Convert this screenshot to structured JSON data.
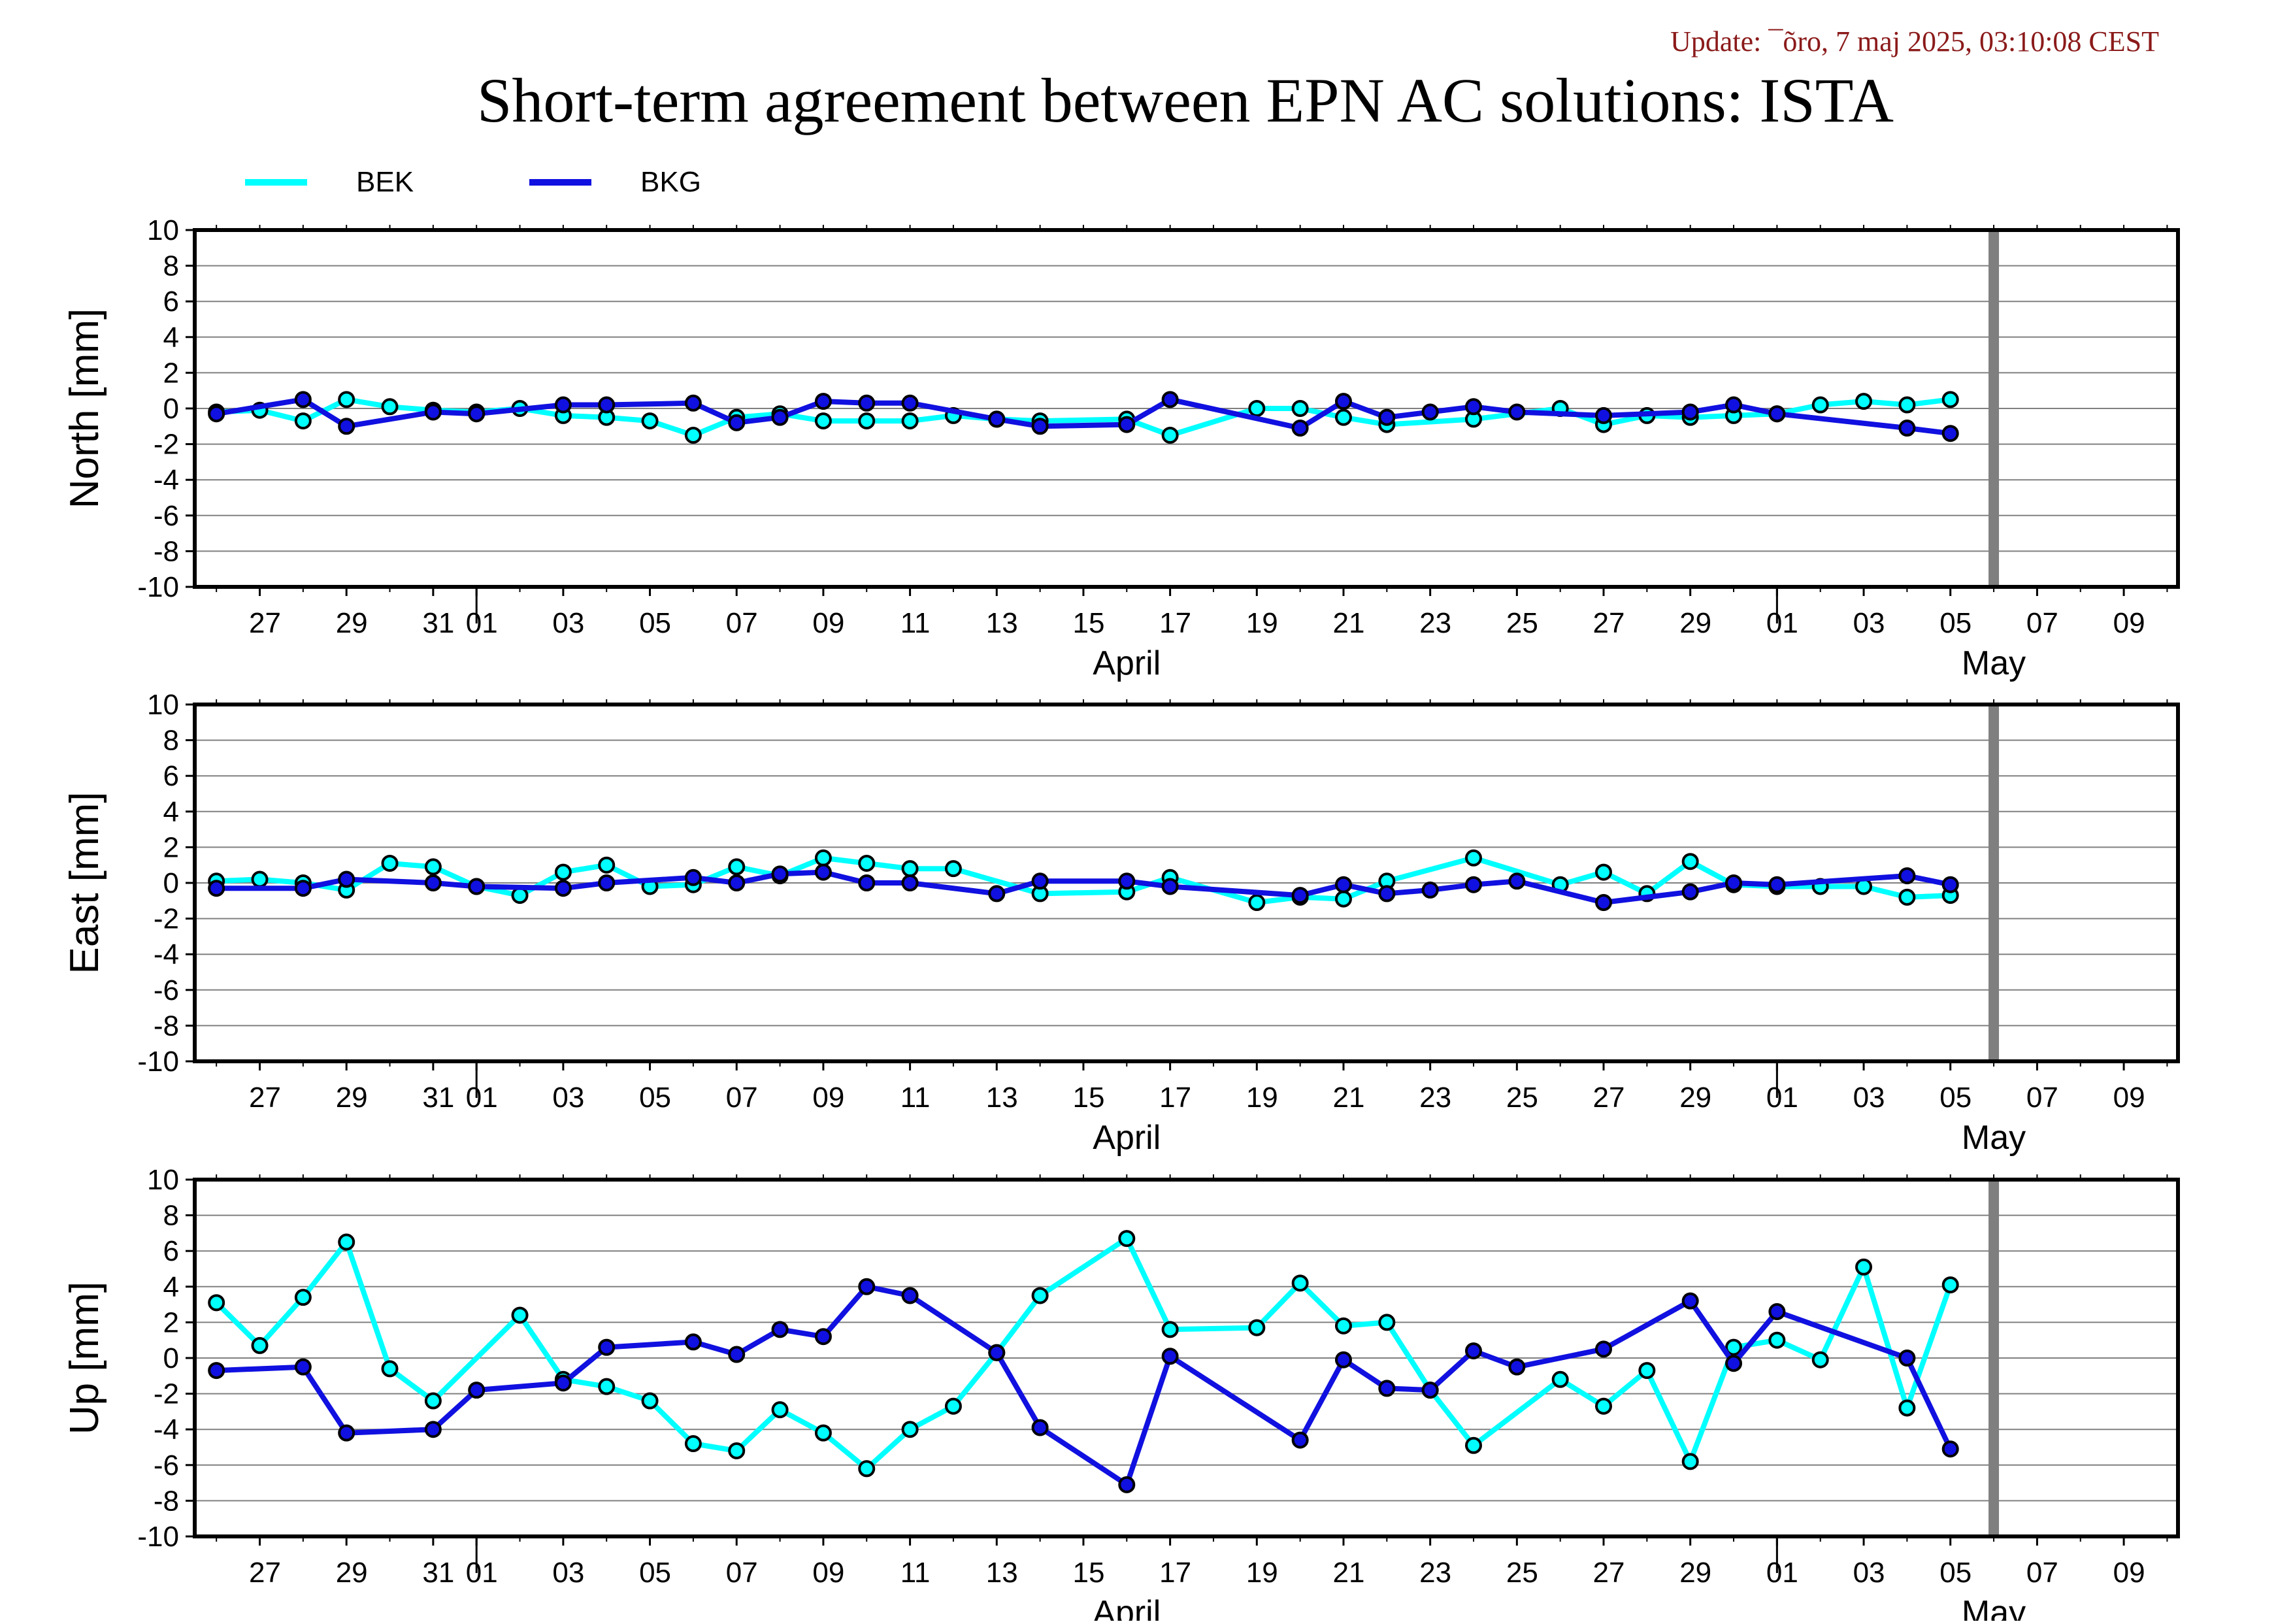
{
  "update_text": "Update: ¯õro, 7 maj 2025, 03:10:08 CEST",
  "title": "Short-term agreement between EPN AC solutions: ISTA",
  "colors": {
    "bek": "#00ffff",
    "bkg": "#1010e0",
    "update": "#8b1a1a",
    "marker_line": "#7f7f7f",
    "grid": "#808080",
    "axis": "#000000"
  },
  "legend": [
    {
      "name": "BEK",
      "color": "#00ffff"
    },
    {
      "name": "BKG",
      "color": "#1010e0"
    }
  ],
  "chart_data": [
    {
      "type": "line",
      "ylabel": "North [mm]",
      "ylim": [
        -10,
        10
      ],
      "yticks": [
        10,
        8,
        6,
        4,
        2,
        0,
        -2,
        -4,
        -6,
        -8,
        -10
      ],
      "xlim": [
        "2025-03-25T12:00",
        "2025-05-10T06:00"
      ],
      "xticks": [
        {
          "date": "2025-03-27",
          "label": "27"
        },
        {
          "date": "2025-03-29",
          "label": "29"
        },
        {
          "date": "2025-03-31",
          "label": "31"
        },
        {
          "date": "2025-04-01",
          "label": "01"
        },
        {
          "date": "2025-04-03",
          "label": "03"
        },
        {
          "date": "2025-04-05",
          "label": "05"
        },
        {
          "date": "2025-04-07",
          "label": "07"
        },
        {
          "date": "2025-04-09",
          "label": "09"
        },
        {
          "date": "2025-04-11",
          "label": "11"
        },
        {
          "date": "2025-04-13",
          "label": "13"
        },
        {
          "date": "2025-04-15",
          "label": "15"
        },
        {
          "date": "2025-04-17",
          "label": "17"
        },
        {
          "date": "2025-04-19",
          "label": "19"
        },
        {
          "date": "2025-04-21",
          "label": "21"
        },
        {
          "date": "2025-04-23",
          "label": "23"
        },
        {
          "date": "2025-04-25",
          "label": "25"
        },
        {
          "date": "2025-04-27",
          "label": "27"
        },
        {
          "date": "2025-04-29",
          "label": "29"
        },
        {
          "date": "2025-05-01",
          "label": "01"
        },
        {
          "date": "2025-05-03",
          "label": "03"
        },
        {
          "date": "2025-05-05",
          "label": "05"
        },
        {
          "date": "2025-05-07",
          "label": "07"
        },
        {
          "date": "2025-05-09",
          "label": "09"
        }
      ],
      "month_labels": [
        {
          "date": "2025-04-16",
          "label": "April"
        },
        {
          "date": "2025-05-06",
          "label": "May"
        }
      ],
      "month_boundaries": [
        "2025-04-01",
        "2025-05-01"
      ],
      "current_marker": "2025-05-06",
      "grid": true,
      "series": [
        {
          "name": "BEK",
          "x": [
            "2025-03-26",
            "2025-03-27",
            "2025-03-28",
            "2025-03-29",
            "2025-03-30",
            "2025-03-31",
            "2025-04-01",
            "2025-04-02",
            "2025-04-03",
            "2025-04-04",
            "2025-04-05",
            "2025-04-06",
            "2025-04-07",
            "2025-04-08",
            "2025-04-09",
            "2025-04-10",
            "2025-04-11",
            "2025-04-12",
            "2025-04-13",
            "2025-04-14",
            "2025-04-16",
            "2025-04-17",
            "2025-04-19",
            "2025-04-20",
            "2025-04-21",
            "2025-04-22",
            "2025-04-24",
            "2025-04-26",
            "2025-04-27",
            "2025-04-28",
            "2025-04-29",
            "2025-04-30",
            "2025-05-01",
            "2025-05-02",
            "2025-05-03",
            "2025-05-04",
            "2025-05-05"
          ],
          "y": [
            -0.2,
            -0.1,
            -0.7,
            0.5,
            0.1,
            -0.1,
            -0.2,
            0.0,
            -0.4,
            -0.5,
            -0.7,
            -1.5,
            -0.5,
            -0.3,
            -0.7,
            -0.7,
            -0.7,
            -0.4,
            -0.6,
            -0.7,
            -0.6,
            -1.5,
            0.0,
            0.0,
            -0.5,
            -0.9,
            -0.6,
            0.0,
            -0.9,
            -0.4,
            -0.5,
            -0.4,
            -0.3,
            0.2,
            0.4,
            0.2,
            0.5
          ]
        },
        {
          "name": "BKG",
          "x": [
            "2025-03-26",
            "2025-03-28",
            "2025-03-29",
            "2025-03-31",
            "2025-04-01",
            "2025-04-03",
            "2025-04-04",
            "2025-04-06",
            "2025-04-07",
            "2025-04-08",
            "2025-04-09",
            "2025-04-10",
            "2025-04-11",
            "2025-04-13",
            "2025-04-14",
            "2025-04-16",
            "2025-04-17",
            "2025-04-20",
            "2025-04-21",
            "2025-04-22",
            "2025-04-23",
            "2025-04-24",
            "2025-04-25",
            "2025-04-27",
            "2025-04-29",
            "2025-04-30",
            "2025-05-01",
            "2025-05-04",
            "2025-05-05"
          ],
          "y": [
            -0.3,
            0.5,
            -1.0,
            -0.2,
            -0.3,
            0.2,
            0.2,
            0.3,
            -0.8,
            -0.5,
            0.4,
            0.3,
            0.3,
            -0.6,
            -1.0,
            -0.9,
            0.5,
            -1.1,
            0.4,
            -0.5,
            -0.2,
            0.1,
            -0.2,
            -0.4,
            -0.2,
            0.2,
            -0.3,
            -1.1,
            -1.4
          ]
        }
      ]
    },
    {
      "type": "line",
      "ylabel": "East [mm]",
      "ylim": [
        -10,
        10
      ],
      "yticks": [
        10,
        8,
        6,
        4,
        2,
        0,
        -2,
        -4,
        -6,
        -8,
        -10
      ],
      "xlim": [
        "2025-03-25T12:00",
        "2025-05-10T06:00"
      ],
      "xticks": [
        {
          "date": "2025-03-27",
          "label": "27"
        },
        {
          "date": "2025-03-29",
          "label": "29"
        },
        {
          "date": "2025-03-31",
          "label": "31"
        },
        {
          "date": "2025-04-01",
          "label": "01"
        },
        {
          "date": "2025-04-03",
          "label": "03"
        },
        {
          "date": "2025-04-05",
          "label": "05"
        },
        {
          "date": "2025-04-07",
          "label": "07"
        },
        {
          "date": "2025-04-09",
          "label": "09"
        },
        {
          "date": "2025-04-11",
          "label": "11"
        },
        {
          "date": "2025-04-13",
          "label": "13"
        },
        {
          "date": "2025-04-15",
          "label": "15"
        },
        {
          "date": "2025-04-17",
          "label": "17"
        },
        {
          "date": "2025-04-19",
          "label": "19"
        },
        {
          "date": "2025-04-21",
          "label": "21"
        },
        {
          "date": "2025-04-23",
          "label": "23"
        },
        {
          "date": "2025-04-25",
          "label": "25"
        },
        {
          "date": "2025-04-27",
          "label": "27"
        },
        {
          "date": "2025-04-29",
          "label": "29"
        },
        {
          "date": "2025-05-01",
          "label": "01"
        },
        {
          "date": "2025-05-03",
          "label": "03"
        },
        {
          "date": "2025-05-05",
          "label": "05"
        },
        {
          "date": "2025-05-07",
          "label": "07"
        },
        {
          "date": "2025-05-09",
          "label": "09"
        }
      ],
      "month_labels": [
        {
          "date": "2025-04-16",
          "label": "April"
        },
        {
          "date": "2025-05-06",
          "label": "May"
        }
      ],
      "month_boundaries": [
        "2025-04-01",
        "2025-05-01"
      ],
      "current_marker": "2025-05-06",
      "grid": true,
      "series": [
        {
          "name": "BEK",
          "x": [
            "2025-03-26",
            "2025-03-27",
            "2025-03-28",
            "2025-03-29",
            "2025-03-30",
            "2025-03-31",
            "2025-04-01",
            "2025-04-02",
            "2025-04-03",
            "2025-04-04",
            "2025-04-05",
            "2025-04-06",
            "2025-04-07",
            "2025-04-08",
            "2025-04-09",
            "2025-04-10",
            "2025-04-11",
            "2025-04-12",
            "2025-04-14",
            "2025-04-16",
            "2025-04-17",
            "2025-04-19",
            "2025-04-20",
            "2025-04-21",
            "2025-04-22",
            "2025-04-24",
            "2025-04-26",
            "2025-04-27",
            "2025-04-28",
            "2025-04-29",
            "2025-04-30",
            "2025-05-01",
            "2025-05-02",
            "2025-05-03",
            "2025-05-04",
            "2025-05-05"
          ],
          "y": [
            0.1,
            0.2,
            0.0,
            -0.4,
            1.1,
            0.9,
            -0.2,
            -0.7,
            0.6,
            1.0,
            -0.2,
            -0.1,
            0.9,
            0.4,
            1.4,
            1.1,
            0.8,
            0.8,
            -0.6,
            -0.5,
            0.3,
            -1.1,
            -0.8,
            -0.9,
            0.1,
            1.4,
            -0.1,
            0.6,
            -0.6,
            1.2,
            -0.1,
            -0.2,
            -0.2,
            -0.2,
            -0.8,
            -0.7
          ]
        },
        {
          "name": "BKG",
          "x": [
            "2025-03-26",
            "2025-03-28",
            "2025-03-29",
            "2025-03-31",
            "2025-04-01",
            "2025-04-03",
            "2025-04-04",
            "2025-04-06",
            "2025-04-07",
            "2025-04-08",
            "2025-04-09",
            "2025-04-10",
            "2025-04-11",
            "2025-04-13",
            "2025-04-14",
            "2025-04-16",
            "2025-04-17",
            "2025-04-20",
            "2025-04-21",
            "2025-04-22",
            "2025-04-23",
            "2025-04-24",
            "2025-04-25",
            "2025-04-27",
            "2025-04-29",
            "2025-04-30",
            "2025-05-01",
            "2025-05-04",
            "2025-05-05"
          ],
          "y": [
            -0.3,
            -0.3,
            0.2,
            0.0,
            -0.2,
            -0.3,
            0.0,
            0.3,
            0.0,
            0.5,
            0.6,
            0.0,
            0.0,
            -0.6,
            0.1,
            0.1,
            -0.2,
            -0.7,
            -0.1,
            -0.6,
            -0.4,
            -0.1,
            0.1,
            -1.1,
            -0.5,
            0.0,
            -0.1,
            0.4,
            -0.1
          ]
        }
      ]
    },
    {
      "type": "line",
      "ylabel": "Up [mm]",
      "ylim": [
        -10,
        10
      ],
      "yticks": [
        10,
        8,
        6,
        4,
        2,
        0,
        -2,
        -4,
        -6,
        -8,
        -10
      ],
      "xlim": [
        "2025-03-25T12:00",
        "2025-05-10T06:00"
      ],
      "xticks": [
        {
          "date": "2025-03-27",
          "label": "27"
        },
        {
          "date": "2025-03-29",
          "label": "29"
        },
        {
          "date": "2025-03-31",
          "label": "31"
        },
        {
          "date": "2025-04-01",
          "label": "01"
        },
        {
          "date": "2025-04-03",
          "label": "03"
        },
        {
          "date": "2025-04-05",
          "label": "05"
        },
        {
          "date": "2025-04-07",
          "label": "07"
        },
        {
          "date": "2025-04-09",
          "label": "09"
        },
        {
          "date": "2025-04-11",
          "label": "11"
        },
        {
          "date": "2025-04-13",
          "label": "13"
        },
        {
          "date": "2025-04-15",
          "label": "15"
        },
        {
          "date": "2025-04-17",
          "label": "17"
        },
        {
          "date": "2025-04-19",
          "label": "19"
        },
        {
          "date": "2025-04-21",
          "label": "21"
        },
        {
          "date": "2025-04-23",
          "label": "23"
        },
        {
          "date": "2025-04-25",
          "label": "25"
        },
        {
          "date": "2025-04-27",
          "label": "27"
        },
        {
          "date": "2025-04-29",
          "label": "29"
        },
        {
          "date": "2025-05-01",
          "label": "01"
        },
        {
          "date": "2025-05-03",
          "label": "03"
        },
        {
          "date": "2025-05-05",
          "label": "05"
        },
        {
          "date": "2025-05-07",
          "label": "07"
        },
        {
          "date": "2025-05-09",
          "label": "09"
        }
      ],
      "month_labels": [
        {
          "date": "2025-04-16",
          "label": "April"
        },
        {
          "date": "2025-05-06",
          "label": "May"
        }
      ],
      "month_boundaries": [
        "2025-04-01",
        "2025-05-01"
      ],
      "current_marker": "2025-05-06",
      "grid": true,
      "series": [
        {
          "name": "BEK",
          "x": [
            "2025-03-26",
            "2025-03-27",
            "2025-03-28",
            "2025-03-29",
            "2025-03-30",
            "2025-03-31",
            "2025-04-02",
            "2025-04-03",
            "2025-04-04",
            "2025-04-05",
            "2025-04-06",
            "2025-04-07",
            "2025-04-08",
            "2025-04-09",
            "2025-04-10",
            "2025-04-11",
            "2025-04-12",
            "2025-04-13",
            "2025-04-14",
            "2025-04-16",
            "2025-04-17",
            "2025-04-19",
            "2025-04-20",
            "2025-04-21",
            "2025-04-22",
            "2025-04-23",
            "2025-04-24",
            "2025-04-26",
            "2025-04-27",
            "2025-04-28",
            "2025-04-29",
            "2025-04-30",
            "2025-05-01",
            "2025-05-02",
            "2025-05-03",
            "2025-05-04",
            "2025-05-05"
          ],
          "y": [
            3.1,
            0.7,
            3.4,
            6.5,
            -0.6,
            -2.4,
            2.4,
            -1.2,
            -1.6,
            -2.4,
            -4.8,
            -5.2,
            -2.9,
            -4.2,
            -6.2,
            -4.0,
            -2.7,
            0.3,
            3.5,
            6.7,
            1.6,
            1.7,
            4.2,
            1.8,
            2.0,
            -1.8,
            -4.9,
            -1.2,
            -2.7,
            -0.7,
            -5.8,
            0.6,
            1.0,
            -0.1,
            5.1,
            -2.8,
            4.1
          ]
        },
        {
          "name": "BKG",
          "x": [
            "2025-03-26",
            "2025-03-28",
            "2025-03-29",
            "2025-03-31",
            "2025-04-01",
            "2025-04-03",
            "2025-04-04",
            "2025-04-06",
            "2025-04-07",
            "2025-04-08",
            "2025-04-09",
            "2025-04-10",
            "2025-04-11",
            "2025-04-13",
            "2025-04-14",
            "2025-04-16",
            "2025-04-17",
            "2025-04-20",
            "2025-04-21",
            "2025-04-22",
            "2025-04-23",
            "2025-04-24",
            "2025-04-25",
            "2025-04-27",
            "2025-04-29",
            "2025-04-30",
            "2025-05-01",
            "2025-05-04",
            "2025-05-05"
          ],
          "y": [
            -0.7,
            -0.5,
            -4.2,
            -4.0,
            -1.8,
            -1.4,
            0.6,
            0.9,
            0.2,
            1.6,
            1.2,
            4.0,
            3.5,
            0.3,
            -3.9,
            -7.1,
            0.1,
            -4.6,
            -0.1,
            -1.7,
            -1.8,
            0.4,
            -0.5,
            0.5,
            3.2,
            -0.3,
            2.6,
            0.0,
            -5.1
          ]
        }
      ]
    }
  ]
}
